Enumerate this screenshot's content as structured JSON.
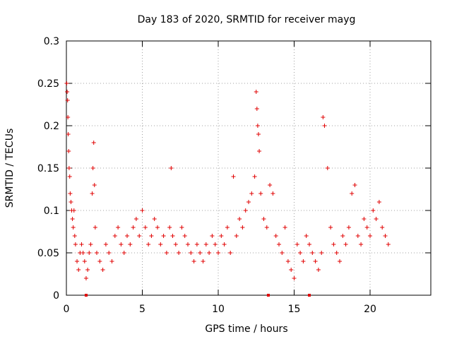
{
  "chart_data": {
    "type": "scatter",
    "title": "Day 183 of 2020, SRMTID for receiver mayg",
    "xlabel": "GPS time / hours",
    "ylabel": "SRMTID / TECUs",
    "xlim": [
      0,
      24
    ],
    "ylim": [
      0,
      0.3
    ],
    "x_ticks": [
      0,
      5,
      10,
      15,
      20
    ],
    "x_tick_labels": [
      "0",
      "5",
      "10",
      "15",
      "20"
    ],
    "y_ticks": [
      0,
      0.05,
      0.1,
      0.15,
      0.2,
      0.25,
      0.3
    ],
    "y_tick_labels": [
      "0",
      "0.05",
      "0.1",
      "0.15",
      "0.2",
      "0.25",
      "0.3"
    ],
    "grid": true,
    "marker": "+",
    "color": "#e00000",
    "series": [
      {
        "name": "SRMTID",
        "x": [
          0.02,
          0.05,
          0.08,
          0.1,
          0.12,
          0.15,
          0.18,
          0.22,
          0.25,
          0.3,
          0.35,
          0.4,
          0.45,
          0.5,
          0.55,
          0.6,
          0.7,
          0.8,
          0.9,
          1.0,
          1.1,
          1.2,
          1.3,
          1.4,
          1.5,
          1.6,
          1.7,
          1.75,
          1.8,
          1.85,
          1.9,
          2.0,
          2.2,
          2.4,
          2.6,
          2.8,
          3.0,
          3.2,
          3.4,
          3.6,
          3.8,
          4.0,
          4.2,
          4.4,
          4.6,
          4.8,
          5.0,
          5.2,
          5.4,
          5.6,
          5.8,
          6.0,
          6.2,
          6.4,
          6.6,
          6.8,
          6.9,
          7.0,
          7.2,
          7.4,
          7.6,
          7.8,
          8.0,
          8.2,
          8.4,
          8.6,
          8.8,
          9.0,
          9.2,
          9.4,
          9.6,
          9.8,
          10.0,
          10.2,
          10.4,
          10.6,
          10.8,
          11.0,
          11.2,
          11.4,
          11.6,
          11.8,
          12.0,
          12.2,
          12.4,
          12.5,
          12.55,
          12.6,
          12.65,
          12.7,
          12.8,
          13.0,
          13.2,
          13.4,
          13.6,
          13.8,
          14.0,
          14.2,
          14.4,
          14.6,
          14.8,
          15.0,
          15.2,
          15.4,
          15.6,
          15.8,
          16.0,
          16.2,
          16.4,
          16.6,
          16.8,
          16.9,
          17.0,
          17.2,
          17.4,
          17.6,
          17.8,
          18.0,
          18.2,
          18.4,
          18.6,
          18.8,
          19.0,
          19.2,
          19.4,
          19.6,
          19.8,
          20.0,
          20.2,
          20.4,
          20.6,
          20.8,
          21.0,
          21.2
        ],
        "y": [
          0.25,
          0.24,
          0.23,
          0.21,
          0.19,
          0.17,
          0.15,
          0.14,
          0.12,
          0.11,
          0.1,
          0.09,
          0.08,
          0.1,
          0.07,
          0.06,
          0.04,
          0.03,
          0.05,
          0.06,
          0.05,
          0.04,
          0.02,
          0.03,
          0.05,
          0.06,
          0.12,
          0.15,
          0.18,
          0.13,
          0.08,
          0.05,
          0.04,
          0.03,
          0.06,
          0.05,
          0.04,
          0.07,
          0.08,
          0.06,
          0.05,
          0.07,
          0.06,
          0.08,
          0.09,
          0.07,
          0.1,
          0.08,
          0.06,
          0.07,
          0.09,
          0.08,
          0.06,
          0.07,
          0.05,
          0.08,
          0.15,
          0.07,
          0.06,
          0.05,
          0.08,
          0.07,
          0.06,
          0.05,
          0.04,
          0.06,
          0.05,
          0.04,
          0.06,
          0.05,
          0.07,
          0.06,
          0.05,
          0.07,
          0.06,
          0.08,
          0.05,
          0.14,
          0.07,
          0.09,
          0.08,
          0.1,
          0.11,
          0.12,
          0.14,
          0.24,
          0.22,
          0.2,
          0.19,
          0.17,
          0.12,
          0.09,
          0.08,
          0.13,
          0.12,
          0.07,
          0.06,
          0.05,
          0.08,
          0.04,
          0.03,
          0.02,
          0.06,
          0.05,
          0.04,
          0.07,
          0.06,
          0.05,
          0.04,
          0.03,
          0.05,
          0.21,
          0.2,
          0.15,
          0.08,
          0.06,
          0.05,
          0.04,
          0.07,
          0.06,
          0.08,
          0.12,
          0.13,
          0.07,
          0.06,
          0.09,
          0.08,
          0.07,
          0.1,
          0.09,
          0.11,
          0.08,
          0.07,
          0.06
        ]
      }
    ],
    "x_axis_markers": [
      1.3,
      13.3,
      16.0
    ]
  }
}
